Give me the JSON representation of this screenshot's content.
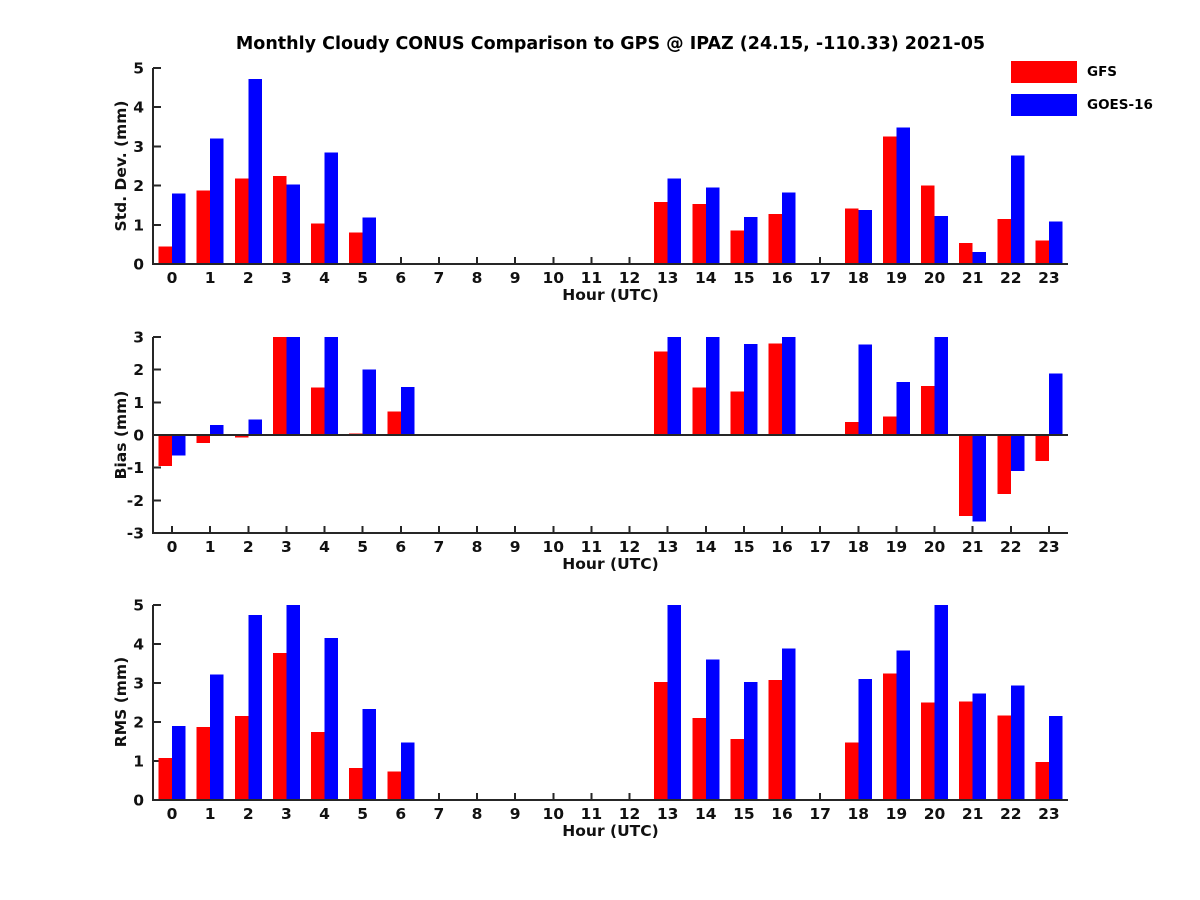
{
  "title": "Monthly Cloudy CONUS Comparison to GPS @ IPAZ (24.15, -110.33) 2021-05",
  "colors": {
    "gfs": "#ff0000",
    "goes16": "#0000ff",
    "axis": "#262626",
    "text": "#111111",
    "background": "#ffffff"
  },
  "legend": {
    "position": "top-right",
    "items": [
      {
        "label": "GFS",
        "color": "#ff0000"
      },
      {
        "label": "GOES-16",
        "color": "#0000ff"
      }
    ]
  },
  "chart_data": [
    {
      "type": "bar",
      "title": "",
      "xlabel": "Hour (UTC)",
      "ylabel": "Std. Dev. (mm)",
      "ylim": [
        0,
        5
      ],
      "yticks": [
        0,
        1,
        2,
        3,
        4,
        5
      ],
      "grid": false,
      "categories": [
        0,
        1,
        2,
        3,
        4,
        5,
        6,
        7,
        8,
        9,
        10,
        11,
        12,
        13,
        14,
        15,
        16,
        17,
        18,
        19,
        20,
        21,
        22,
        23
      ],
      "series": [
        {
          "name": "GFS",
          "color": "#ff0000",
          "values": [
            0.45,
            1.88,
            2.18,
            2.25,
            1.03,
            0.8,
            null,
            null,
            null,
            null,
            null,
            null,
            null,
            1.58,
            1.53,
            0.85,
            1.28,
            null,
            1.42,
            3.25,
            2.0,
            0.53,
            1.15,
            0.6
          ]
        },
        {
          "name": "GOES-16",
          "color": "#0000ff",
          "values": [
            1.8,
            3.2,
            4.72,
            2.03,
            2.85,
            1.18,
            null,
            null,
            null,
            null,
            null,
            null,
            null,
            2.18,
            1.95,
            1.2,
            1.83,
            null,
            1.38,
            3.48,
            1.22,
            0.3,
            2.77,
            1.08
          ]
        }
      ]
    },
    {
      "type": "bar",
      "title": "",
      "xlabel": "Hour (UTC)",
      "ylabel": "Bias (mm)",
      "ylim": [
        -3,
        3
      ],
      "yticks": [
        3,
        2,
        1,
        0,
        -1,
        -2,
        -3
      ],
      "grid": false,
      "zero_line": true,
      "categories": [
        0,
        1,
        2,
        3,
        4,
        5,
        6,
        7,
        8,
        9,
        10,
        11,
        12,
        13,
        14,
        15,
        16,
        17,
        18,
        19,
        20,
        21,
        22,
        23
      ],
      "series": [
        {
          "name": "GFS",
          "color": "#ff0000",
          "values": [
            -0.95,
            -0.25,
            -0.07,
            3.0,
            1.45,
            0.05,
            0.72,
            null,
            null,
            null,
            null,
            null,
            null,
            2.55,
            1.45,
            1.33,
            2.8,
            null,
            0.4,
            0.57,
            1.5,
            -2.48,
            -1.8,
            -0.8
          ]
        },
        {
          "name": "GOES-16",
          "color": "#0000ff",
          "values": [
            -0.62,
            0.3,
            0.48,
            3.0,
            3.0,
            2.0,
            1.47,
            null,
            null,
            null,
            null,
            null,
            null,
            3.0,
            3.0,
            2.78,
            3.0,
            null,
            2.77,
            1.63,
            3.0,
            -2.65,
            -1.1,
            1.88
          ]
        }
      ]
    },
    {
      "type": "bar",
      "title": "",
      "xlabel": "Hour (UTC)",
      "ylabel": "RMS (mm)",
      "ylim": [
        0,
        5
      ],
      "yticks": [
        0,
        1,
        2,
        3,
        4,
        5
      ],
      "grid": false,
      "categories": [
        0,
        1,
        2,
        3,
        4,
        5,
        6,
        7,
        8,
        9,
        10,
        11,
        12,
        13,
        14,
        15,
        16,
        17,
        18,
        19,
        20,
        21,
        22,
        23
      ],
      "series": [
        {
          "name": "GFS",
          "color": "#ff0000",
          "values": [
            1.08,
            1.87,
            2.15,
            3.77,
            1.75,
            0.82,
            0.73,
            null,
            null,
            null,
            null,
            null,
            null,
            3.03,
            2.1,
            1.57,
            3.08,
            null,
            1.47,
            3.25,
            2.5,
            2.53,
            2.17,
            0.98
          ]
        },
        {
          "name": "GOES-16",
          "color": "#0000ff",
          "values": [
            1.9,
            3.22,
            4.75,
            5.0,
            4.15,
            2.33,
            1.47,
            null,
            null,
            null,
            null,
            null,
            null,
            5.0,
            3.6,
            3.03,
            3.88,
            null,
            3.1,
            3.83,
            5.0,
            2.73,
            2.93,
            2.15
          ]
        }
      ]
    }
  ]
}
